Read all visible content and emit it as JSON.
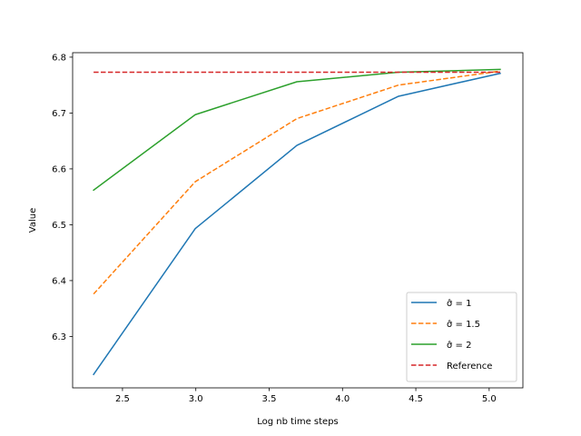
{
  "chart_data": {
    "type": "line",
    "title": "",
    "xlabel": "Log nb time  steps",
    "ylabel": "Value",
    "xlim": [
      2.16,
      5.23
    ],
    "ylim": [
      6.208,
      6.808
    ],
    "xticks": [
      2.5,
      3.0,
      3.5,
      4.0,
      4.5,
      5.0
    ],
    "xtick_labels": [
      "2.5",
      "3.0",
      "3.5",
      "4.0",
      "4.5",
      "5.0"
    ],
    "yticks": [
      6.3,
      6.4,
      6.5,
      6.6,
      6.7,
      6.8
    ],
    "ytick_labels": [
      "6.3",
      "6.4",
      "6.5",
      "6.6",
      "6.7",
      "6.8"
    ],
    "grid": false,
    "legend_position": "lower-right",
    "series": [
      {
        "name": "σ̂ =  1",
        "color": "#1f77b4",
        "dash": "solid",
        "x": [
          2.303,
          2.996,
          3.689,
          4.382,
          5.075
        ],
        "y": [
          6.232,
          6.493,
          6.642,
          6.73,
          6.771
        ]
      },
      {
        "name": "σ̂ =  1.5",
        "color": "#ff7f0e",
        "dash": "dashed",
        "x": [
          2.303,
          2.996,
          3.689,
          4.382,
          5.075
        ],
        "y": [
          6.376,
          6.577,
          6.69,
          6.75,
          6.775
        ]
      },
      {
        "name": "σ̂ =  2",
        "color": "#2ca02c",
        "dash": "solid",
        "x": [
          2.303,
          2.996,
          3.689,
          4.382,
          5.075
        ],
        "y": [
          6.562,
          6.697,
          6.756,
          6.773,
          6.778
        ]
      },
      {
        "name": "Reference",
        "color": "#d62728",
        "dash": "dashed",
        "x": [
          2.303,
          5.075
        ],
        "y": [
          6.773,
          6.773
        ]
      }
    ]
  }
}
